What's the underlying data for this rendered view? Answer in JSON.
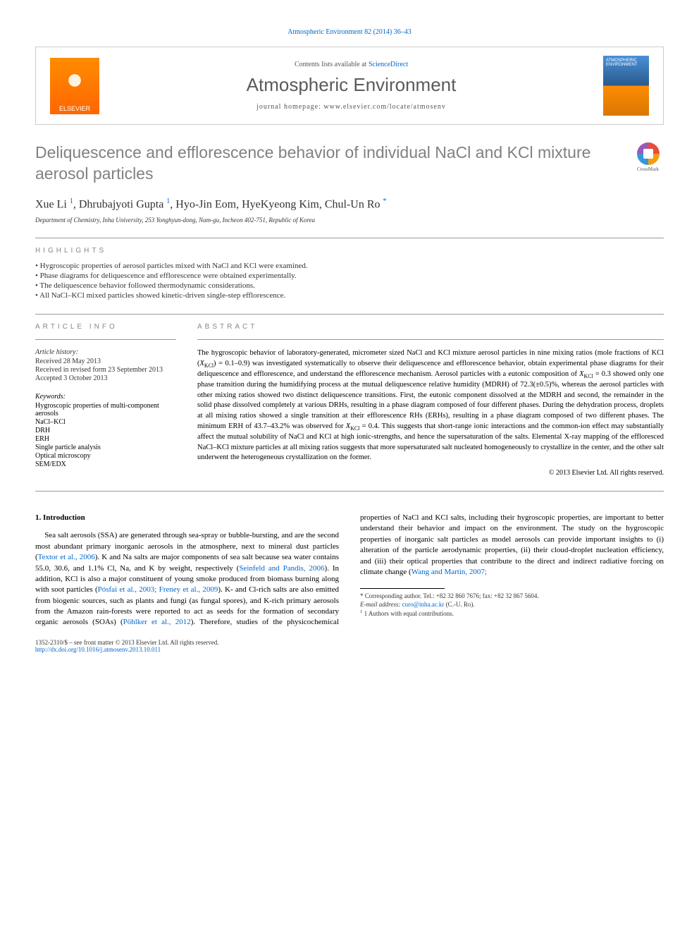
{
  "header": {
    "citation": "Atmospheric Environment 82 (2014) 36–43",
    "contents_text": "Contents lists available at ",
    "contents_link": "ScienceDirect",
    "journal_name": "Atmospheric Environment",
    "homepage_label": "journal homepage: ",
    "homepage_url": "www.elsevier.com/locate/atmosenv",
    "elsevier": "ELSEVIER",
    "cover_text": "ATMOSPHERIC ENVIRONMENT"
  },
  "crossmark": "CrossMark",
  "title": "Deliquescence and efflorescence behavior of individual NaCl and KCl mixture aerosol particles",
  "authors_html": "Xue Li <sup>1</sup>, Dhrubajyoti Gupta <sup>1</sup>, Hyo-Jin Eom, HyeKyeong Kim, Chul-Un Ro <sup>*</sup>",
  "affiliation": "Department of Chemistry, Inha University, 253 Yonghyun-dong, Nam-gu, Incheon 402-751, Republic of Korea",
  "highlights_label": "HIGHLIGHTS",
  "highlights": [
    "Hygroscopic properties of aerosol particles mixed with NaCl and KCl were examined.",
    "Phase diagrams for deliquescence and efflorescence were obtained experimentally.",
    "The deliquescence behavior followed thermodynamic considerations.",
    "All NaCl–KCl mixed particles showed kinetic-driven single-step efflorescence."
  ],
  "article_info_label": "ARTICLE INFO",
  "abstract_label": "ABSTRACT",
  "history": {
    "heading": "Article history:",
    "received": "Received 28 May 2013",
    "revised": "Received in revised form 23 September 2013",
    "accepted": "Accepted 3 October 2013"
  },
  "keywords_heading": "Keywords:",
  "keywords": [
    "Hygroscopic properties of multi-component aerosols",
    "NaCl–KCl",
    "DRH",
    "ERH",
    "Single particle analysis",
    "Optical microscopy",
    "SEM/EDX"
  ],
  "abstract": "The hygroscopic behavior of laboratory-generated, micrometer sized NaCl and KCl mixture aerosol particles in nine mixing ratios (mole fractions of KCl (X_KCl) = 0.1–0.9) was investigated systematically to observe their deliquescence and efflorescence behavior, obtain experimental phase diagrams for their deliquescence and efflorescence, and understand the efflorescence mechanism. Aerosol particles with a eutonic composition of X_KCl = 0.3 showed only one phase transition during the humidifying process at the mutual deliquescence relative humidity (MDRH) of 72.3(±0.5)%, whereas the aerosol particles with other mixing ratios showed two distinct deliquescence transitions. First, the eutonic component dissolved at the MDRH and second, the remainder in the solid phase dissolved completely at various DRHs, resulting in a phase diagram composed of four different phases. During the dehydration process, droplets at all mixing ratios showed a single transition at their efflorescence RHs (ERHs), resulting in a phase diagram composed of two different phases. The minimum ERH of 43.7–43.2% was observed for X_KCl = 0.4. This suggests that short-range ionic interactions and the common-ion effect may substantially affect the mutual solubility of NaCl and KCl at high ionic-strengths, and hence the supersaturation of the salts. Elemental X-ray mapping of the effloresced NaCl–KCl mixture particles at all mixing ratios suggests that more supersaturated salt nucleated homogeneously to crystallize in the center, and the other salt underwent the heterogeneous crystallization on the former.",
  "copyright": "© 2013 Elsevier Ltd. All rights reserved.",
  "intro_heading": "1. Introduction",
  "intro_p1_a": "Sea salt aerosols (SSA) are generated through sea-spray or bubble-bursting, and are the second most abundant primary inorganic aerosols in the atmosphere, next to mineral dust particles (",
  "intro_p1_link1": "Textor et al., 2006",
  "intro_p1_b": "). K and Na salts are major components of sea salt because sea water contains 55.0, 30.6, and 1.1% Cl, Na, and K by weight, respectively (",
  "intro_p1_link2": "Seinfeld and Pandis, 2006",
  "intro_p1_c": "). In addition, KCl is also a major constituent of young smoke produced from biomass burning along with soot particles (",
  "intro_p1_link3": "Pósfai et al., 2003; Freney et al., 2009",
  "intro_p1_d": "). K- and Cl-rich salts are also emitted from biogenic sources, such as plants and fungi (as fungal spores), and K-rich primary aerosols from the Amazon rain-forests were reported to act as seeds for the formation of secondary organic aerosols (SOAs) (",
  "intro_p1_link4": "Pöhlker et al., 2012",
  "intro_p1_e": "). Therefore, studies of the physicochemical properties of NaCl and KCl salts, including their hygroscopic properties, are important to better understand their behavior and impact on the environment. The study on the hygroscopic properties of inorganic salt particles as model aerosols can provide important insights to (i) alteration of the particle aerodynamic properties, (ii) their cloud-droplet nucleation efficiency, and (iii) their optical properties that contribute to the direct and indirect radiative forcing on climate change (",
  "intro_p1_link5": "Wang and Martin, 2007;",
  "footnotes": {
    "corr": "* Corresponding author. Tel.: +82 32 860 7676; fax: +82 32 867 5604.",
    "email_label": "E-mail address: ",
    "email": "curo@inha.ac.kr",
    "email_suffix": " (C.-U. Ro).",
    "equal": "1 Authors with equal contributions."
  },
  "footer": {
    "issn": "1352-2310/$ – see front matter © 2013 Elsevier Ltd. All rights reserved.",
    "doi": "http://dx.doi.org/10.1016/j.atmosenv.2013.10.011"
  }
}
